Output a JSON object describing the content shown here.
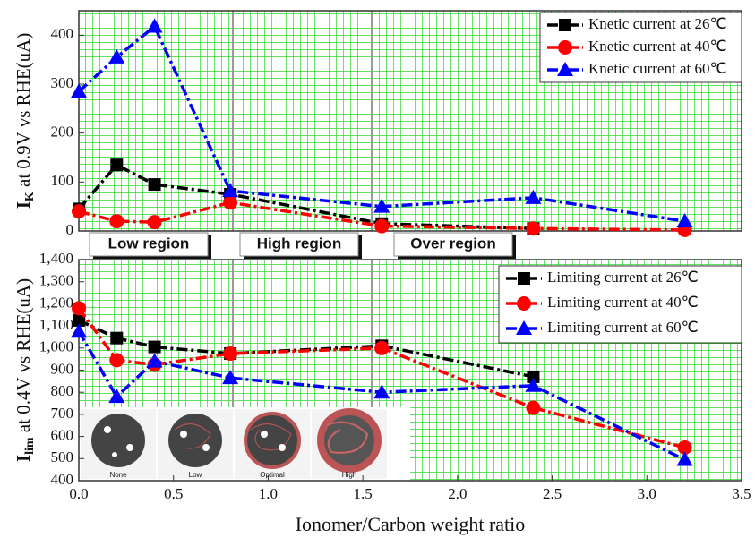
{
  "chart_data": [
    {
      "type": "line",
      "legend": "upper right",
      "y_label": {
        "main": "I",
        "sub": "K",
        "rest": " at 0.9V vs RHE(uA)"
      },
      "x": [
        0,
        0.2,
        0.4,
        0.8,
        1.6,
        2.4,
        3.2
      ],
      "xlim": [
        0,
        3.5
      ],
      "ylim": [
        0,
        450
      ],
      "yticks": [
        0,
        100,
        200,
        300,
        400
      ],
      "regions": [
        "Low region",
        "High region",
        "Over region"
      ],
      "series": [
        {
          "name": "Knetic current at 26℃",
          "color": "#000000",
          "marker": "square",
          "values": [
            45,
            135,
            95,
            75,
            15,
            5,
            null
          ]
        },
        {
          "name": "Knetic current  at 40℃",
          "color": "#ff0000",
          "marker": "circle",
          "values": [
            40,
            20,
            18,
            58,
            10,
            5,
            2
          ]
        },
        {
          "name": "Knetic current at  60℃",
          "color": "#0000ff",
          "marker": "triangle",
          "values": [
            285,
            355,
            418,
            82,
            50,
            68,
            20
          ]
        }
      ]
    },
    {
      "type": "line",
      "legend": "upper right",
      "y_label": {
        "main": "I",
        "sub": "lim",
        "rest": " at 0.4V vs RHE(uA)"
      },
      "x_label": "Ionomer/Carbon weight ratio",
      "x": [
        0,
        0.2,
        0.4,
        0.8,
        1.6,
        2.4,
        3.2
      ],
      "xlim": [
        0,
        3.5
      ],
      "xticks": [
        {
          "value": 0,
          "label": "0.0"
        },
        0.5,
        {
          "value": 1,
          "label": "1.0"
        },
        1.5,
        {
          "value": 2,
          "label": "2.0"
        },
        2.5,
        {
          "value": 3,
          "label": "3.0"
        },
        3.5
      ],
      "ylim": [
        400,
        1400
      ],
      "yticks": [
        400,
        500,
        600,
        700,
        800,
        900,
        {
          "value": 1000,
          "label": "1,000"
        },
        {
          "value": 1100,
          "label": "1,100"
        },
        {
          "value": 1200,
          "label": "1,200"
        },
        {
          "value": 1300,
          "label": "1,300"
        },
        {
          "value": 1400,
          "label": "1,400"
        }
      ],
      "inset_labels": [
        "None",
        "Low",
        "Optimal",
        "High"
      ],
      "series": [
        {
          "name": "Limiting current at 26℃",
          "color": "#000000",
          "marker": "square",
          "values": [
            1125,
            1045,
            1005,
            975,
            1010,
            870,
            null
          ]
        },
        {
          "name": "Limiting current at 40℃",
          "color": "#ff0000",
          "marker": "circle",
          "values": [
            1180,
            945,
            925,
            975,
            1000,
            730,
            550
          ]
        },
        {
          "name": "Limiting current at 60℃",
          "color": "#0000ff",
          "marker": "triangle",
          "values": [
            1075,
            780,
            940,
            865,
            800,
            830,
            495
          ]
        }
      ]
    }
  ]
}
